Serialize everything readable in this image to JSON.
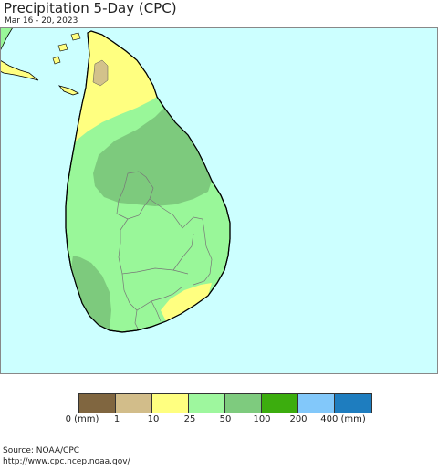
{
  "header": {
    "title": "Precipitation 5-Day (CPC)",
    "date_range": "Mar 16 - 20, 2023"
  },
  "map": {
    "region": "Sri Lanka",
    "colors": {
      "ocean": "#ccffff",
      "land_25_50": "#99f799",
      "land_50_100": "#7dca7d",
      "land_10_25": "#ffff80",
      "land_1_10": "#d3c28b",
      "border": "#000000",
      "district_lines": "#777777"
    }
  },
  "legend": {
    "swatches": [
      {
        "color": "#806640"
      },
      {
        "color": "#d2bd8a"
      },
      {
        "color": "#ffff80"
      },
      {
        "color": "#9ef79e"
      },
      {
        "color": "#7ecb7e"
      },
      {
        "color": "#3cad0e"
      },
      {
        "color": "#82c8fa"
      },
      {
        "color": "#1e7dbf"
      }
    ],
    "labels": [
      "0 (mm)",
      "1",
      "10",
      "25",
      "50",
      "100",
      "200",
      "400 (mm)"
    ]
  },
  "footer": {
    "source": "Source: NOAA/CPC",
    "url": "http://www.cpc.ncep.noaa.gov/"
  }
}
